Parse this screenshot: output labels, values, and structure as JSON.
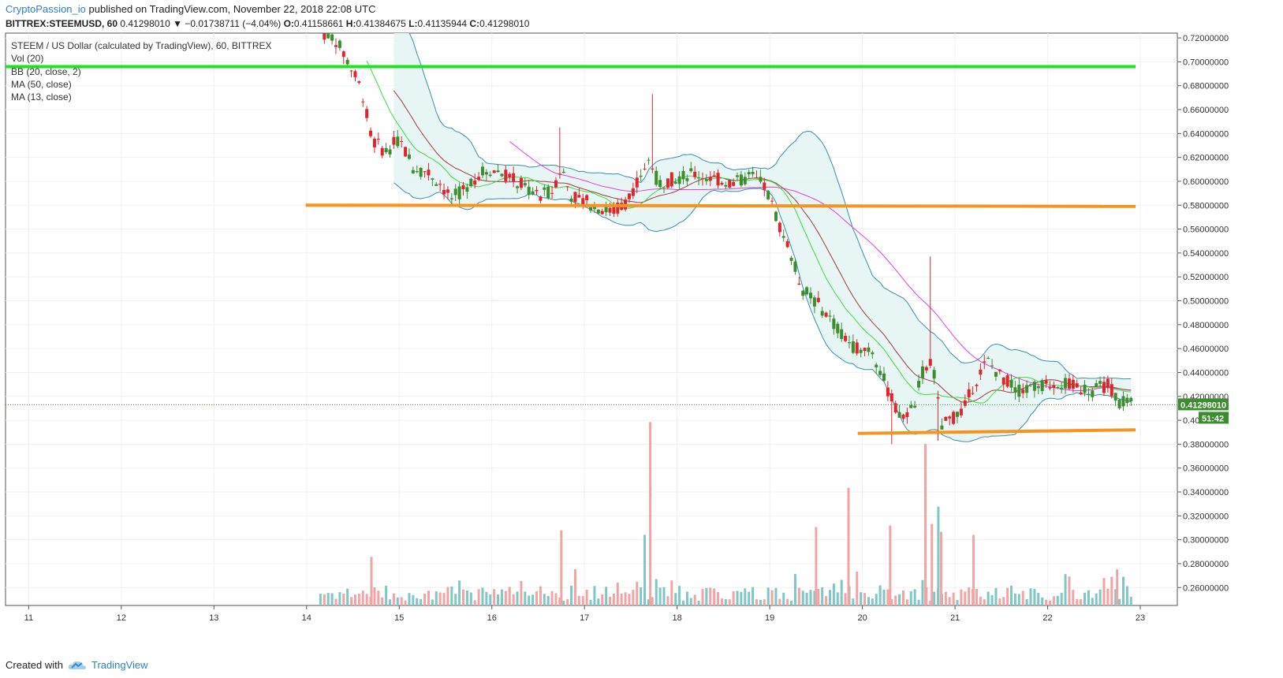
{
  "header": {
    "author": "CryptoPassion_io",
    "published_text": "published on TradingView.com, November 22, 2018 22:08 UTC",
    "symbol": "BITTREX:STEEMUSD, 60",
    "last": "0.41298010",
    "change": "−0.01738711 (−4.04%)",
    "o_label": "O:",
    "o": "0.41158661",
    "h_label": "H:",
    "h": "0.41384675",
    "l_label": "L:",
    "l": "0.41135944",
    "c_label": "C:",
    "c": "0.41298010"
  },
  "legend": {
    "title": "STEEM / US Dollar (calculated by TradingView), 60, BITTREX",
    "vol": "Vol (20)",
    "bb": "BB (20, close, 2)",
    "ma50": "MA (50, close)",
    "ma13": "MA (13, close)"
  },
  "price_label": "0.41298010",
  "countdown_label": "51:42",
  "footer": {
    "created": "Created with",
    "brand": "TradingView"
  },
  "colors": {
    "up": "#3c8d2f",
    "down": "#e0242b",
    "vol_up": "#7fc6c6",
    "vol_down": "#f2a4a4",
    "bb": "#3a8fa8",
    "bb_fill": "#e6f4f4",
    "ma50": "#e040d8",
    "ma13": "#3ddc3d",
    "ma20": "#9b3b3b",
    "green_line": "#22e022",
    "orange_line": "#f7931e"
  },
  "chart_data": {
    "type": "candlestick",
    "y_ticks": [
      "0.72000000",
      "0.70000000",
      "0.68000000",
      "0.66000000",
      "0.64000000",
      "0.62000000",
      "0.60000000",
      "0.58000000",
      "0.56000000",
      "0.54000000",
      "0.52000000",
      "0.50000000",
      "0.48000000",
      "0.46000000",
      "0.44000000",
      "0.42000000",
      "0.40000000",
      "0.38000000",
      "0.36000000",
      "0.34000000",
      "0.32000000",
      "0.30000000",
      "0.28000000",
      "0.26000000"
    ],
    "x_ticks": [
      "11",
      "12",
      "13",
      "14",
      "15",
      "16",
      "17",
      "18",
      "19",
      "20",
      "21",
      "22",
      "23"
    ],
    "ylim": [
      0.245,
      0.724
    ],
    "xlim": [
      10.75,
      23.4
    ],
    "horizontal_lines": [
      {
        "name": "green-resistance",
        "color": "#22e022",
        "x_from": 10.75,
        "x_to": 22.95,
        "y_from": 0.696,
        "y_to": 0.696
      },
      {
        "name": "orange-upper",
        "color": "#f7931e",
        "x_from": 13.99,
        "x_to": 22.95,
        "y_from": 0.58,
        "y_to": 0.579
      },
      {
        "name": "orange-lower",
        "color": "#f7931e",
        "x_from": 19.95,
        "x_to": 22.95,
        "y_from": 0.389,
        "y_to": 0.392
      }
    ],
    "close_anchors": [
      [
        14.15,
        0.725
      ],
      [
        14.3,
        0.72
      ],
      [
        14.45,
        0.7
      ],
      [
        14.6,
        0.675
      ],
      [
        14.7,
        0.635
      ],
      [
        14.85,
        0.625
      ],
      [
        15.0,
        0.635
      ],
      [
        15.15,
        0.612
      ],
      [
        15.3,
        0.608
      ],
      [
        15.45,
        0.598
      ],
      [
        15.55,
        0.585
      ],
      [
        15.65,
        0.59
      ],
      [
        15.8,
        0.602
      ],
      [
        15.95,
        0.61
      ],
      [
        16.1,
        0.608
      ],
      [
        16.3,
        0.598
      ],
      [
        16.5,
        0.588
      ],
      [
        16.65,
        0.592
      ],
      [
        16.75,
        0.612
      ],
      [
        16.85,
        0.588
      ],
      [
        17.0,
        0.584
      ],
      [
        17.15,
        0.578
      ],
      [
        17.3,
        0.575
      ],
      [
        17.45,
        0.582
      ],
      [
        17.6,
        0.605
      ],
      [
        17.7,
        0.618
      ],
      [
        17.8,
        0.598
      ],
      [
        18.0,
        0.603
      ],
      [
        18.2,
        0.606
      ],
      [
        18.4,
        0.602
      ],
      [
        18.6,
        0.598
      ],
      [
        18.8,
        0.604
      ],
      [
        18.95,
        0.595
      ],
      [
        19.05,
        0.575
      ],
      [
        19.2,
        0.545
      ],
      [
        19.35,
        0.51
      ],
      [
        19.55,
        0.495
      ],
      [
        19.75,
        0.475
      ],
      [
        19.9,
        0.462
      ],
      [
        20.1,
        0.46
      ],
      [
        20.25,
        0.43
      ],
      [
        20.4,
        0.402
      ],
      [
        20.55,
        0.41
      ],
      [
        20.65,
        0.44
      ],
      [
        20.75,
        0.452
      ],
      [
        20.85,
        0.395
      ],
      [
        21.0,
        0.403
      ],
      [
        21.1,
        0.41
      ],
      [
        21.2,
        0.43
      ],
      [
        21.35,
        0.45
      ],
      [
        21.5,
        0.436
      ],
      [
        21.7,
        0.425
      ],
      [
        21.9,
        0.428
      ],
      [
        22.1,
        0.432
      ],
      [
        22.3,
        0.428
      ],
      [
        22.5,
        0.425
      ],
      [
        22.65,
        0.43
      ],
      [
        22.78,
        0.415
      ],
      [
        22.9,
        0.413
      ]
    ],
    "spikes": [
      [
        16.75,
        0.645,
        0.592
      ],
      [
        17.73,
        0.673,
        0.598
      ],
      [
        20.72,
        0.537,
        0.43
      ],
      [
        20.3,
        0.38,
        0.43
      ],
      [
        20.8,
        0.383,
        0.4
      ]
    ],
    "volume_scale": {
      "ylim": [
        0.245,
        0.42
      ]
    },
    "volume_spikes": [
      [
        17.71,
        0.362,
        "down"
      ],
      [
        20.68,
        0.348,
        "down"
      ],
      [
        19.85,
        0.32,
        "down"
      ],
      [
        20.82,
        0.308,
        "up"
      ],
      [
        16.75,
        0.293,
        "down"
      ],
      [
        17.65,
        0.29,
        "up"
      ],
      [
        19.5,
        0.295,
        "down"
      ],
      [
        20.3,
        0.296,
        "down"
      ],
      [
        20.75,
        0.297,
        "down"
      ],
      [
        20.85,
        0.292,
        "down"
      ],
      [
        14.7,
        0.276,
        "down"
      ],
      [
        21.2,
        0.29,
        "down"
      ],
      [
        22.75,
        0.268,
        "down"
      ]
    ],
    "bands": {
      "upper_color": "#3a8fa8",
      "lower_color": "#3a8fa8"
    }
  }
}
